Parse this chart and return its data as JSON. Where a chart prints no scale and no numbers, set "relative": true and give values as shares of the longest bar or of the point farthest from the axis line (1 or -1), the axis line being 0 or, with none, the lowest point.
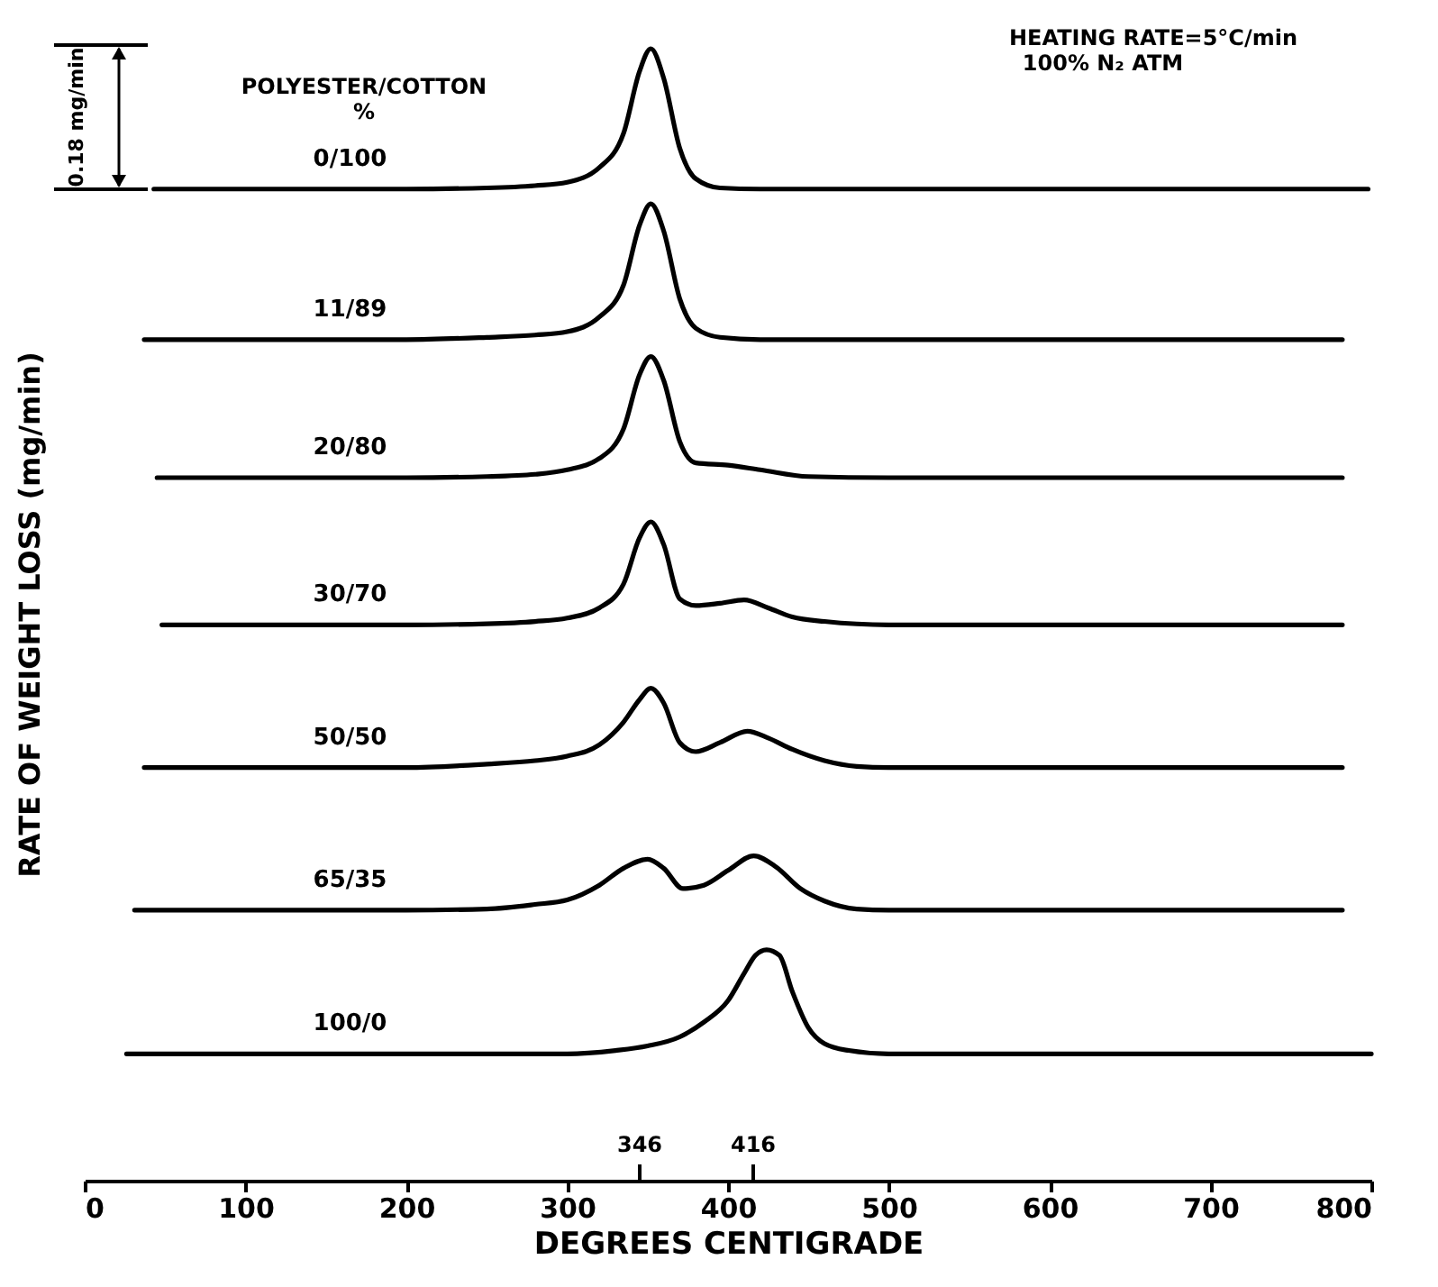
{
  "chart_data": {
    "type": "line",
    "relative": true,
    "xlabel": "DEGREES CENTIGRADE",
    "ylabel": "RATE OF WEIGHT LOSS (mg/min)",
    "legend_title": "POLYESTER/COTTON %",
    "xlim": [
      0,
      800
    ],
    "xticks": [
      0,
      100,
      200,
      300,
      400,
      500,
      600,
      700,
      800
    ],
    "grid": false,
    "legend": false,
    "marker": "none",
    "line_style": "solid",
    "annotations": [
      "HEATING RATE=5°C/min",
      "100% N₂ ATM",
      "0.18 mg/min",
      "346",
      "416"
    ],
    "series": [
      {
        "name": "0/100",
        "color": "#000000",
        "x": [
          43,
          100,
          200,
          250,
          280,
          300,
          320,
          335,
          345,
          352,
          360,
          370,
          380,
          395,
          420,
          500,
          600,
          700,
          798
        ],
        "values": [
          0.876,
          0.876,
          0.876,
          0.877,
          0.879,
          0.882,
          0.895,
          0.925,
          0.98,
          1.0,
          0.974,
          0.912,
          0.885,
          0.877,
          0.876,
          0.876,
          0.876,
          0.876,
          0.876
        ]
      },
      {
        "name": "11/89",
        "color": "#000000",
        "x": [
          37,
          100,
          200,
          250,
          280,
          300,
          320,
          335,
          345,
          352,
          360,
          370,
          380,
          395,
          420,
          500,
          600,
          700,
          782
        ],
        "values": [
          0.743,
          0.743,
          0.743,
          0.745,
          0.747,
          0.75,
          0.763,
          0.791,
          0.844,
          0.863,
          0.839,
          0.779,
          0.753,
          0.745,
          0.743,
          0.743,
          0.743,
          0.743,
          0.743
        ]
      },
      {
        "name": "20/80",
        "color": "#000000",
        "x": [
          45,
          100,
          200,
          250,
          280,
          300,
          320,
          335,
          345,
          352,
          360,
          370,
          380,
          400,
          420,
          450,
          500,
          600,
          700,
          782
        ],
        "values": [
          0.621,
          0.621,
          0.621,
          0.622,
          0.624,
          0.628,
          0.638,
          0.664,
          0.712,
          0.728,
          0.707,
          0.653,
          0.634,
          0.632,
          0.628,
          0.622,
          0.621,
          0.621,
          0.621,
          0.621
        ]
      },
      {
        "name": "30/70",
        "color": "#000000",
        "x": [
          48,
          100,
          200,
          250,
          280,
          300,
          320,
          335,
          345,
          352,
          360,
          370,
          380,
          395,
          410,
          425,
          440,
          460,
          500,
          600,
          700,
          782
        ],
        "values": [
          0.491,
          0.491,
          0.491,
          0.492,
          0.494,
          0.497,
          0.506,
          0.527,
          0.568,
          0.582,
          0.562,
          0.514,
          0.508,
          0.51,
          0.513,
          0.506,
          0.498,
          0.494,
          0.491,
          0.491,
          0.491,
          0.491
        ]
      },
      {
        "name": "50/50",
        "color": "#000000",
        "x": [
          37,
          100,
          200,
          250,
          280,
          300,
          320,
          335,
          345,
          352,
          360,
          370,
          380,
          395,
          412,
          425,
          440,
          460,
          480,
          500,
          600,
          700,
          782
        ],
        "values": [
          0.365,
          0.365,
          0.365,
          0.368,
          0.371,
          0.375,
          0.385,
          0.405,
          0.425,
          0.435,
          0.422,
          0.387,
          0.379,
          0.387,
          0.397,
          0.391,
          0.381,
          0.371,
          0.366,
          0.365,
          0.365,
          0.365,
          0.365
        ]
      },
      {
        "name": "65/35",
        "color": "#000000",
        "x": [
          31,
          100,
          200,
          250,
          280,
          300,
          320,
          335,
          350,
          360,
          372,
          385,
          400,
          416,
          430,
          445,
          460,
          480,
          500,
          600,
          700,
          782
        ],
        "values": [
          0.239,
          0.239,
          0.239,
          0.24,
          0.244,
          0.248,
          0.261,
          0.276,
          0.284,
          0.276,
          0.258,
          0.261,
          0.274,
          0.287,
          0.277,
          0.258,
          0.247,
          0.24,
          0.239,
          0.239,
          0.239,
          0.239
        ]
      },
      {
        "name": "100/0",
        "color": "#000000",
        "x": [
          26,
          100,
          200,
          300,
          330,
          350,
          370,
          385,
          400,
          410,
          417,
          424,
          432,
          440,
          450,
          460,
          475,
          500,
          600,
          700,
          800
        ],
        "values": [
          0.112,
          0.112,
          0.112,
          0.112,
          0.115,
          0.119,
          0.127,
          0.14,
          0.159,
          0.183,
          0.199,
          0.204,
          0.199,
          0.167,
          0.135,
          0.121,
          0.115,
          0.112,
          0.112,
          0.112,
          0.112
        ]
      }
    ]
  }
}
